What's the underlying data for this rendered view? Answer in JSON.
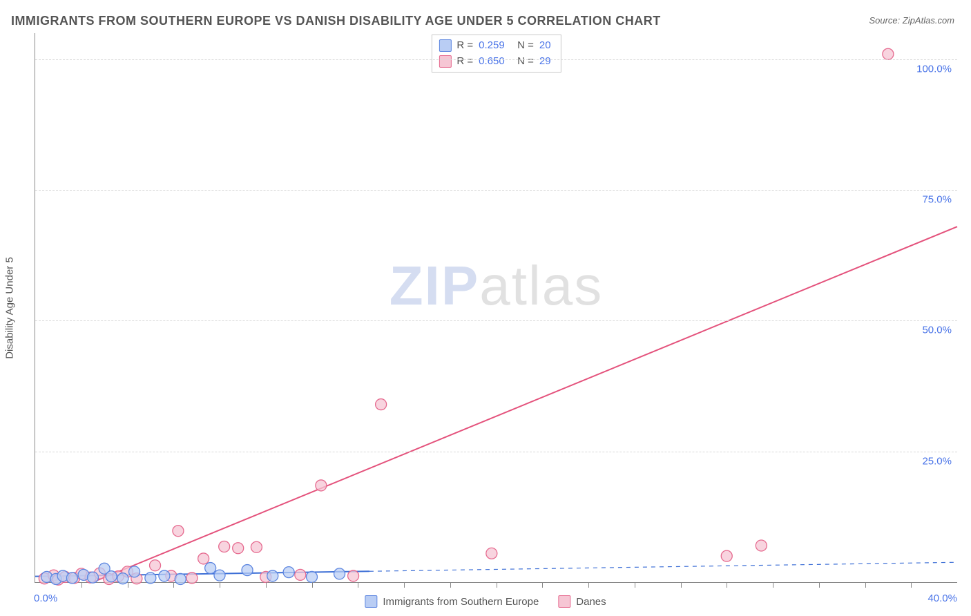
{
  "title": "IMMIGRANTS FROM SOUTHERN EUROPE VS DANISH DISABILITY AGE UNDER 5 CORRELATION CHART",
  "source": "Source: ZipAtlas.com",
  "watermark": {
    "part1": "ZIP",
    "part2": "atlas"
  },
  "y_axis_title": "Disability Age Under 5",
  "chart": {
    "type": "scatter-with-regression",
    "background_color": "#ffffff",
    "grid_color": "#d8d8d8",
    "axis_color": "#888888",
    "tick_label_color": "#4a74e8",
    "tick_label_fontsize": 15,
    "xlim": [
      0,
      40
    ],
    "ylim": [
      0,
      105
    ],
    "x_origin_label": "0.0%",
    "x_max_label": "40.0%",
    "y_ticks": [
      {
        "value": 25,
        "label": "25.0%"
      },
      {
        "value": 50,
        "label": "50.0%"
      },
      {
        "value": 75,
        "label": "75.0%"
      },
      {
        "value": 100,
        "label": "100.0%"
      }
    ],
    "x_minor_ticks": [
      2,
      4,
      6,
      8,
      10,
      12,
      14,
      16,
      18,
      20,
      22,
      24,
      26,
      28,
      30,
      32,
      34,
      36,
      38
    ],
    "series": [
      {
        "id": "immigrants",
        "name": "Immigrants from Southern Europe",
        "marker_fill": "#b9cdf4",
        "marker_stroke": "#5d86e0",
        "line_color": "#3d6fd6",
        "line_dash_after_x": 14.5,
        "line_width": 2,
        "marker_radius": 8,
        "R_label": "R  =",
        "N_label": "N  =",
        "R": "0.259",
        "N": "20",
        "points": [
          [
            0.5,
            1.0
          ],
          [
            0.9,
            0.6
          ],
          [
            1.2,
            1.2
          ],
          [
            1.6,
            0.8
          ],
          [
            2.1,
            1.4
          ],
          [
            2.5,
            0.9
          ],
          [
            3.0,
            2.6
          ],
          [
            3.3,
            1.1
          ],
          [
            3.8,
            0.7
          ],
          [
            4.3,
            2.0
          ],
          [
            5.0,
            0.8
          ],
          [
            5.6,
            1.2
          ],
          [
            6.3,
            0.6
          ],
          [
            7.6,
            2.7
          ],
          [
            8.0,
            1.3
          ],
          [
            9.2,
            2.3
          ],
          [
            10.3,
            1.2
          ],
          [
            11.0,
            1.9
          ],
          [
            12.0,
            1.0
          ],
          [
            13.2,
            1.6
          ]
        ],
        "regression": {
          "x1": 0,
          "y1": 1.1,
          "x2": 40,
          "y2": 3.8
        }
      },
      {
        "id": "danes",
        "name": "Danes",
        "marker_fill": "#f6c6d4",
        "marker_stroke": "#e66a8f",
        "line_color": "#e4527c",
        "line_width": 2,
        "marker_radius": 8,
        "R_label": "R  =",
        "N_label": "N  =",
        "R": "0.650",
        "N": "29",
        "points": [
          [
            0.4,
            0.7
          ],
          [
            0.8,
            1.3
          ],
          [
            1.0,
            0.5
          ],
          [
            1.3,
            1.0
          ],
          [
            1.7,
            0.8
          ],
          [
            2.0,
            1.6
          ],
          [
            2.4,
            0.9
          ],
          [
            2.8,
            1.7
          ],
          [
            3.2,
            0.6
          ],
          [
            3.6,
            1.1
          ],
          [
            4.0,
            2.0
          ],
          [
            4.4,
            0.7
          ],
          [
            5.2,
            3.2
          ],
          [
            5.9,
            1.2
          ],
          [
            6.2,
            9.8
          ],
          [
            6.8,
            0.8
          ],
          [
            7.3,
            4.5
          ],
          [
            8.2,
            6.8
          ],
          [
            8.8,
            6.5
          ],
          [
            9.6,
            6.7
          ],
          [
            10.0,
            1.0
          ],
          [
            11.5,
            1.4
          ],
          [
            12.4,
            18.5
          ],
          [
            13.8,
            1.2
          ],
          [
            15.0,
            34.0
          ],
          [
            19.8,
            5.5
          ],
          [
            30.0,
            5.0
          ],
          [
            31.5,
            7.0
          ],
          [
            37.0,
            101.0
          ]
        ],
        "regression": {
          "x1": 2.5,
          "y1": 0,
          "x2": 40,
          "y2": 68
        }
      }
    ]
  }
}
